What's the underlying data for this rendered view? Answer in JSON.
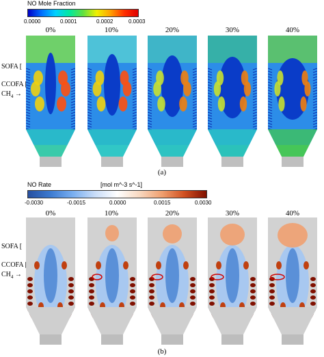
{
  "panel_a": {
    "colorbar": {
      "title": "NO Mole Fraction",
      "ticks": [
        "0.0000",
        "0.0001",
        "0.0002",
        "0.0003"
      ],
      "stops": [
        "#0000c8",
        "#0070ff",
        "#00d0ff",
        "#00e8a0",
        "#60e040",
        "#f0f000",
        "#ffa000",
        "#ff3000",
        "#e00000"
      ]
    },
    "columns": [
      "0%",
      "10%",
      "20%",
      "30%",
      "40%"
    ],
    "side_labels": {
      "sofa": "SOFA",
      "ccofa": "CCOFA",
      "ch4_base": "CH",
      "ch4_sub": "4"
    },
    "label": "(a)"
  },
  "panel_b": {
    "colorbar": {
      "title": "NO Rate",
      "unit": "[mol m^-3 s^-1]",
      "ticks": [
        "-0.0030",
        "-0.0015",
        "0.0000",
        "0.0015",
        "0.0030"
      ],
      "stops": [
        "#2850a0",
        "#3c7ad0",
        "#78aef0",
        "#c8dcf8",
        "#ffffff",
        "#f8d8c0",
        "#f0a070",
        "#d05020",
        "#801000"
      ]
    },
    "columns": [
      "0%",
      "10%",
      "20%",
      "30%",
      "40%"
    ],
    "side_labels": {
      "sofa": "SOFA",
      "ccofa": "CCOFA",
      "ch4_base": "CH",
      "ch4_sub": "4"
    },
    "label": "(b)"
  },
  "colors": {
    "furnace_bg_a": "#2f8fe8",
    "furnace_bg_b": "#d2d2d2",
    "hot": "#e02000",
    "cold": "#0010c0"
  }
}
